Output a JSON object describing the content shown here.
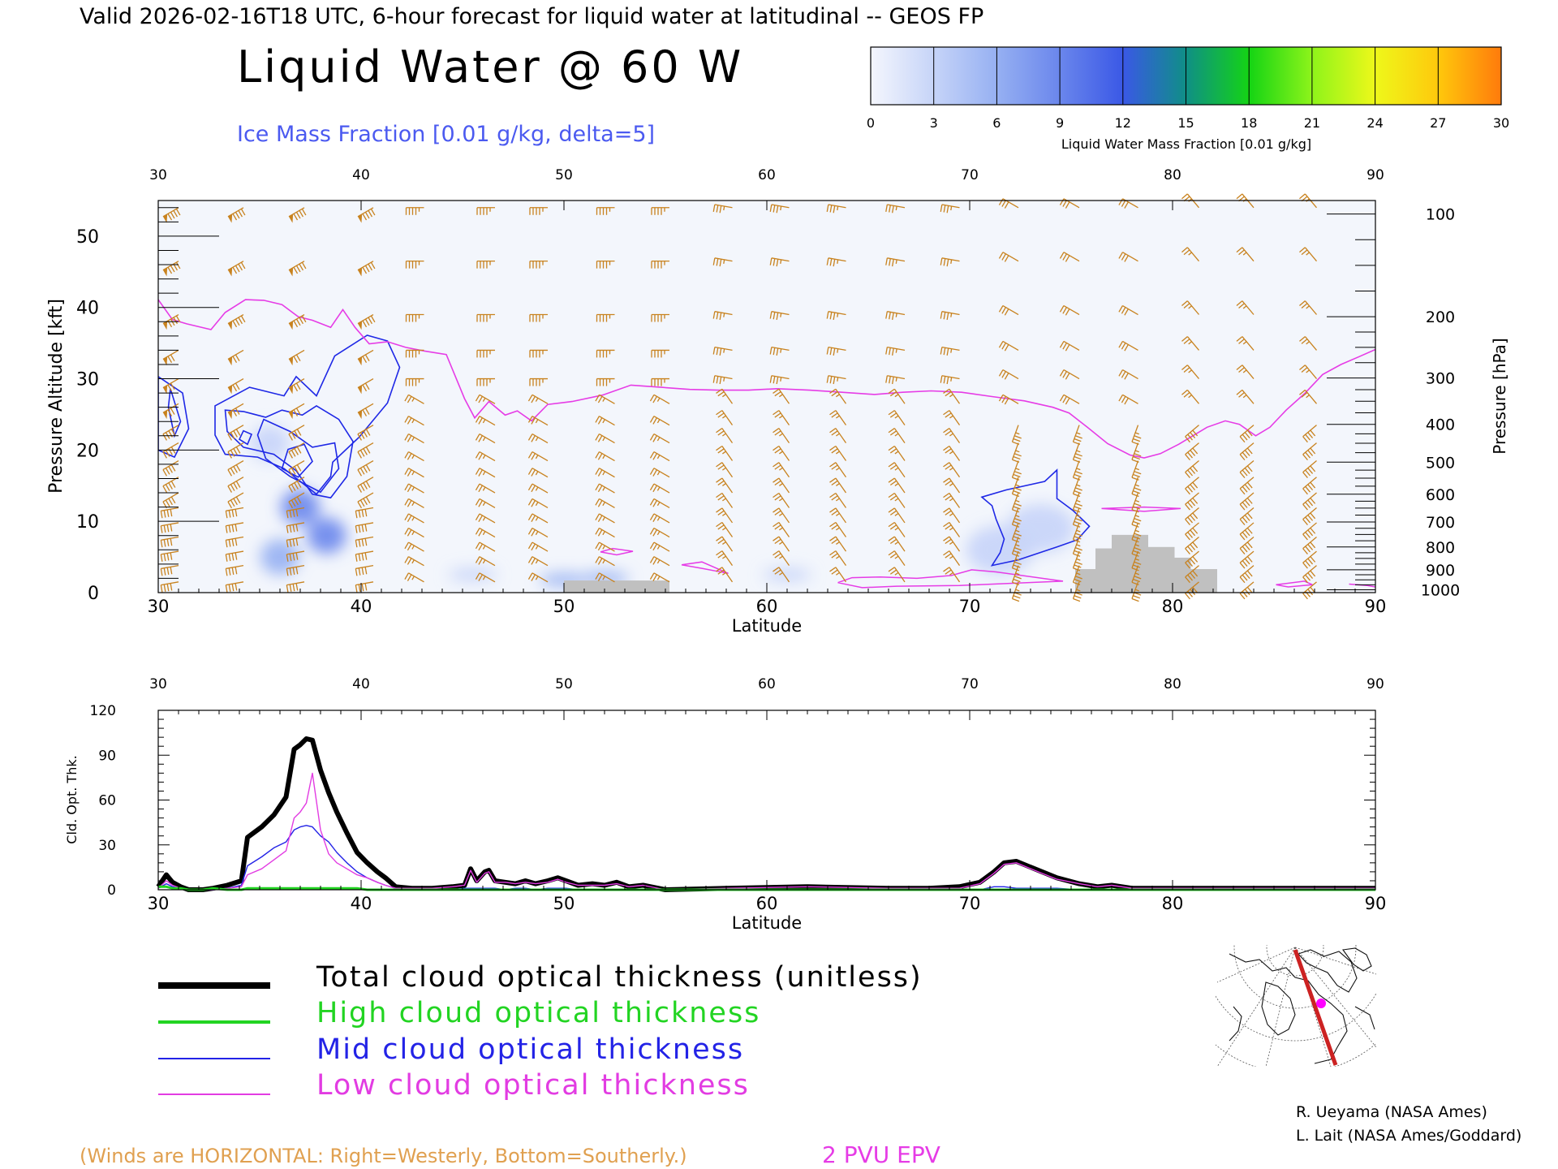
{
  "header": {
    "top_line": "Valid 2026-02-16T18 UTC, 6-hour forecast for liquid water at latitudinal -- GEOS FP",
    "title": "Liquid Water @ 60 W",
    "contour_label": "Ice Mass Fraction [0.01 g/kg, delta=5]"
  },
  "colorbar": {
    "ticks": [
      "0",
      "3",
      "6",
      "9",
      "12",
      "15",
      "18",
      "21",
      "24",
      "27",
      "30"
    ],
    "label": "Liquid Water Mass Fraction [0.01 g/kg]",
    "colors": [
      "#f4f6fd",
      "#c6d4f8",
      "#96b0f2",
      "#6a86ec",
      "#3a58e6",
      "#0f8f86",
      "#14d414",
      "#8ef41a",
      "#eef81a",
      "#ffc80c",
      "#ff7a0c",
      "#ff2a0c"
    ]
  },
  "chart_data": [
    {
      "type": "heatmap",
      "x_ticks": [
        30,
        40,
        50,
        60,
        70,
        80,
        90
      ],
      "xlabel": "Latitude",
      "xlim": [
        30,
        90
      ],
      "ylabel_left": "Pressure Altitude [kft]",
      "ylim_left": [
        0,
        55
      ],
      "y_ticks_left": [
        0,
        10,
        20,
        30,
        40,
        50
      ],
      "ylabel_right": "Pressure [hPa]",
      "y_ticks_right": [
        "100",
        "200",
        "300",
        "400",
        "500",
        "600",
        "700",
        "800",
        "900",
        "1000"
      ],
      "y_ticks_right_kft": [
        53.1,
        38.7,
        30.1,
        23.6,
        18.3,
        13.8,
        9.9,
        6.4,
        3.2,
        0.4
      ],
      "liquid_water_blobs": [
        {
          "lat": 37.0,
          "kft": 12.0,
          "value": 10
        },
        {
          "lat": 35.5,
          "kft": 21.0,
          "value": 4
        },
        {
          "lat": 38.3,
          "kft": 8.0,
          "value": 9
        },
        {
          "lat": 36.0,
          "kft": 5.0,
          "value": 7
        },
        {
          "lat": 50.0,
          "kft": 1.8,
          "value": 7
        },
        {
          "lat": 52.0,
          "kft": 2.0,
          "value": 5
        },
        {
          "lat": 45.5,
          "kft": 2.5,
          "value": 4
        },
        {
          "lat": 61.0,
          "kft": 2.5,
          "value": 3
        },
        {
          "lat": 73.5,
          "kft": 9.0,
          "value": 3
        },
        {
          "lat": 71.5,
          "kft": 6.0,
          "value": 2
        }
      ],
      "ice_contours": [
        {
          "name": "ice-35-west",
          "points": [
            [
              30,
              30.3
            ],
            [
              31.2,
              28
            ],
            [
              31.5,
              23
            ],
            [
              30.8,
              19
            ],
            [
              30,
              20
            ]
          ]
        },
        {
          "name": "ice-35-inner",
          "points": [
            [
              30.6,
              28.6
            ],
            [
              31.1,
              24
            ],
            [
              30.8,
              22
            ],
            [
              30.5,
              26
            ]
          ]
        },
        {
          "name": "ice-outer",
          "points": [
            [
              32.8,
              26.2
            ],
            [
              34.5,
              28.8
            ],
            [
              36.2,
              27.6
            ],
            [
              36.8,
              30.3
            ],
            [
              37.8,
              27.6
            ],
            [
              38.7,
              33.2
            ],
            [
              40.3,
              36.1
            ],
            [
              41.3,
              35.3
            ],
            [
              41.9,
              31.6
            ],
            [
              41.3,
              26.6
            ],
            [
              39.9,
              21.8
            ],
            [
              38.6,
              18.3
            ],
            [
              38.5,
              16.3
            ],
            [
              37.8,
              13.8
            ],
            [
              36.2,
              17.4
            ],
            [
              34.9,
              19
            ],
            [
              33.3,
              19.4
            ],
            [
              32.8,
              22.1
            ]
          ]
        },
        {
          "name": "ice-mid",
          "points": [
            [
              33.3,
              25.6
            ],
            [
              34.2,
              25.4
            ],
            [
              35.3,
              24.6
            ],
            [
              36.1,
              25.6
            ],
            [
              37.1,
              24.9
            ],
            [
              37.8,
              26.2
            ],
            [
              38.9,
              24.3
            ],
            [
              39.6,
              21.2
            ],
            [
              39.3,
              16.3
            ],
            [
              38.5,
              13.3
            ],
            [
              37.6,
              13.8
            ],
            [
              36.8,
              17.1
            ],
            [
              35.7,
              19.4
            ],
            [
              34.2,
              20.4
            ],
            [
              33.4,
              22.6
            ]
          ]
        },
        {
          "name": "ice-inner",
          "points": [
            [
              35.2,
              24.3
            ],
            [
              36.5,
              22.6
            ],
            [
              37.6,
              20.4
            ],
            [
              38.7,
              21
            ],
            [
              38.9,
              17.4
            ],
            [
              38.0,
              14.1
            ],
            [
              36.5,
              16.3
            ],
            [
              35.3,
              18.8
            ],
            [
              34.9,
              22.1
            ]
          ]
        },
        {
          "name": "ice-core-a",
          "points": [
            [
              36.1,
              17.4
            ],
            [
              36.9,
              16.2
            ],
            [
              37.6,
              18.4
            ],
            [
              37.2,
              20.8
            ],
            [
              36.4,
              20.1
            ]
          ]
        },
        {
          "name": "ice-core-b",
          "points": [
            [
              34.0,
              21.5
            ],
            [
              34.4,
              20.8
            ],
            [
              34.6,
              22.2
            ],
            [
              34.2,
              22.7
            ]
          ]
        },
        {
          "name": "ice-arctic",
          "points": [
            [
              70.6,
              13.4
            ],
            [
              71.8,
              14.4
            ],
            [
              73.7,
              15.6
            ],
            [
              74.3,
              17.2
            ],
            [
              74.3,
              13.2
            ],
            [
              75.1,
              11.5
            ],
            [
              75.9,
              9.3
            ],
            [
              75.3,
              7.4
            ],
            [
              74.3,
              6.4
            ],
            [
              72.4,
              4.6
            ],
            [
              71.1,
              3.8
            ],
            [
              71.5,
              5.6
            ],
            [
              71.7,
              7.5
            ],
            [
              71.3,
              10.3
            ],
            [
              71.1,
              12.2
            ]
          ]
        }
      ],
      "epv_2pvu_line": {
        "lat": [
          30,
          30.7,
          31.4,
          32.6,
          33.3,
          34.3,
          35.2,
          36.1,
          36.9,
          37.6,
          38.5,
          39.1,
          39.7,
          40.4,
          41.3,
          42.2,
          43.1,
          44.2,
          45.1,
          45.6,
          46.3,
          47.1,
          47.7,
          48.4,
          49.2,
          50.4,
          51.9,
          53.3,
          54.8,
          56.2,
          57.6,
          59.1,
          60.5,
          62.1,
          63.7,
          65.3,
          66.7,
          68.1,
          69.6,
          71.1,
          72.7,
          74.1,
          74.9,
          75.8,
          76.8,
          77.9,
          78.6,
          79.4,
          80.3,
          81.7,
          82.6,
          83.3,
          84.1,
          84.8,
          85.6,
          86.5,
          87.4,
          88.3,
          89.2,
          90
        ],
        "kft": [
          41.1,
          38.3,
          37.7,
          36.9,
          39.3,
          41.1,
          41,
          40.4,
          38.7,
          38.2,
          37.2,
          39.7,
          37.2,
          34.9,
          35.2,
          34.4,
          33.9,
          33.4,
          27.2,
          24.5,
          26.8,
          24.9,
          25.5,
          24.1,
          26.4,
          26.8,
          27.7,
          29.1,
          28.8,
          28.5,
          28.4,
          28.4,
          28.6,
          28.4,
          28.1,
          27.8,
          28.1,
          28.3,
          28.1,
          27.5,
          26.9,
          26,
          25.2,
          23.2,
          20.9,
          19.3,
          18.9,
          19.5,
          20.8,
          23.2,
          24.1,
          23.6,
          22,
          23.2,
          25.6,
          27.9,
          30.6,
          32,
          33.1,
          34.1
        ]
      },
      "epv_low_loops": [
        {
          "lat": [
            51.8,
            52.6,
            53.4,
            52.4,
            51.8
          ],
          "kft": [
            5.7,
            5.3,
            5.8,
            6.2,
            5.7
          ]
        },
        {
          "lat": [
            55.8,
            56.8,
            58.1,
            56.8,
            55.8
          ],
          "kft": [
            3.9,
            3.4,
            2.7,
            4.3,
            3.9
          ]
        },
        {
          "lat": [
            63.5,
            64.2,
            65.6,
            67.4,
            69.1,
            70.1,
            71.3,
            74.6,
            69.5,
            66.4,
            64.7,
            63.5
          ],
          "kft": [
            1.4,
            2.1,
            2.2,
            2.0,
            2.4,
            3.2,
            2.9,
            1.6,
            1.0,
            0.9,
            0.7,
            1.4
          ]
        },
        {
          "lat": [
            76.5,
            78.6,
            80.4,
            78.6,
            76.5
          ],
          "kft": [
            11.8,
            12.0,
            11.8,
            11.4,
            11.8
          ]
        },
        {
          "lat": [
            85.1,
            86.5,
            86.9,
            85.7,
            85.1
          ],
          "kft": [
            1.1,
            1.6,
            1.1,
            0.8,
            1.1
          ]
        },
        {
          "lat": [
            88.7,
            89.6,
            90
          ],
          "kft": [
            1.2,
            1.0,
            0.8
          ]
        }
      ],
      "terrain": [
        {
          "lat_from": 50.0,
          "lat_to": 55.2,
          "kft": 1.7
        },
        {
          "lat_from": 75.2,
          "lat_to": 76.2,
          "kft": 3.3
        },
        {
          "lat_from": 76.2,
          "lat_to": 77.0,
          "kft": 6.2
        },
        {
          "lat_from": 77.0,
          "lat_to": 78.8,
          "kft": 8.1
        },
        {
          "lat_from": 78.8,
          "lat_to": 80.1,
          "kft": 6.4
        },
        {
          "lat_from": 80.1,
          "lat_to": 80.9,
          "kft": 4.9
        },
        {
          "lat_from": 80.9,
          "lat_to": 82.2,
          "kft": 3.3
        }
      ],
      "wind_barb_lats": [
        31,
        34.2,
        37.2,
        40.6,
        43.1,
        46.6,
        49.2,
        52.5,
        55.2,
        58.3,
        61.1,
        63.9,
        66.8,
        69.5,
        72.4,
        75.4,
        78.3,
        81.3,
        84,
        87.1
      ],
      "wind_barb_levels_kft": [
        54,
        46.5,
        39,
        34,
        30,
        26.5,
        23.5,
        21,
        18.5,
        16.2,
        14,
        11.9,
        9.8,
        7.8,
        5.8,
        3.8,
        1.5
      ]
    },
    {
      "type": "line",
      "xlabel": "Latitude",
      "ylabel": "Cld. Opt. Thk.",
      "xlim": [
        30,
        90
      ],
      "ylim": [
        0,
        120
      ],
      "x_ticks": [
        30,
        40,
        50,
        60,
        70,
        80,
        90
      ],
      "y_ticks": [
        0,
        30,
        60,
        90,
        120
      ],
      "x": [
        30,
        30.4,
        30.7,
        31.1,
        31.5,
        32.2,
        32.7,
        33.4,
        34.1,
        34.4,
        35.1,
        35.7,
        36.3,
        36.7,
        37.0,
        37.3,
        37.6,
        38.0,
        38.4,
        38.8,
        39.3,
        39.8,
        40.3,
        40.8,
        41.2,
        41.7,
        42.5,
        43.5,
        44.5,
        45.1,
        45.4,
        45.7,
        46.1,
        46.3,
        46.6,
        47.1,
        47.6,
        48.1,
        48.6,
        49.2,
        49.7,
        50.1,
        50.7,
        51.4,
        52.0,
        52.6,
        53.2,
        53.9,
        55,
        58,
        62,
        66,
        68,
        69.5,
        70.5,
        71.2,
        71.7,
        72.3,
        73.2,
        74.3,
        75.4,
        76.3,
        77.0,
        78,
        82,
        86,
        90
      ],
      "series": [
        {
          "name": "Total cloud optical thickness (unitless)",
          "color": "#000000",
          "values": [
            2,
            10,
            5,
            2,
            0,
            0,
            1,
            3,
            6,
            35,
            42,
            50,
            62,
            94,
            97,
            101,
            100,
            80,
            65,
            52,
            38,
            25,
            18,
            12,
            8,
            2,
            1,
            1,
            2,
            3,
            14,
            6,
            12,
            13,
            6,
            5,
            4,
            6,
            4,
            6,
            8,
            6,
            3,
            4,
            3,
            5,
            2,
            3,
            0,
            1,
            2,
            1,
            1,
            2,
            5,
            12,
            18,
            19,
            14,
            8,
            4,
            2,
            3,
            1,
            1,
            1,
            1
          ]
        },
        {
          "name": "High cloud optical thickness",
          "color": "#22d422",
          "values": [
            2,
            2,
            1,
            1,
            0,
            0,
            1,
            0,
            0,
            1,
            1,
            1,
            1,
            1,
            1,
            1,
            1,
            1,
            1,
            1,
            1,
            1,
            0,
            0,
            0,
            0,
            0,
            0,
            0,
            0,
            0,
            0,
            0,
            0,
            0,
            0,
            0,
            0,
            0,
            0,
            0,
            0,
            0,
            0,
            0,
            0,
            0,
            0,
            0,
            0,
            0,
            0,
            0,
            0,
            0,
            0,
            0,
            0,
            0,
            0,
            0,
            0,
            0,
            0,
            0,
            0,
            0
          ]
        },
        {
          "name": "Mid cloud optical thickness",
          "color": "#2323e6",
          "values": [
            1,
            4,
            2,
            1,
            0,
            0,
            0,
            1,
            3,
            16,
            22,
            28,
            32,
            40,
            42,
            43,
            42,
            36,
            32,
            25,
            18,
            12,
            8,
            5,
            3,
            1,
            0,
            0,
            0,
            1,
            1,
            1,
            1,
            1,
            1,
            0,
            1,
            1,
            0,
            1,
            1,
            1,
            0,
            0,
            0,
            0,
            0,
            0,
            0,
            0,
            0,
            0,
            0,
            0,
            0,
            2,
            2,
            1,
            1,
            1,
            0,
            0,
            0,
            0,
            0,
            0,
            0
          ]
        },
        {
          "name": "Low cloud optical thickness",
          "color": "#e23ce2",
          "values": [
            1,
            6,
            3,
            1,
            0,
            0,
            0,
            1,
            2,
            10,
            14,
            20,
            26,
            48,
            52,
            58,
            78,
            40,
            24,
            18,
            14,
            10,
            8,
            5,
            3,
            1,
            1,
            1,
            2,
            3,
            13,
            5,
            11,
            12,
            5,
            5,
            4,
            5,
            4,
            5,
            7,
            5,
            3,
            3,
            3,
            4,
            2,
            3,
            0,
            1,
            2,
            1,
            1,
            1,
            4,
            11,
            17,
            18,
            13,
            7,
            4,
            2,
            3,
            1,
            1,
            1,
            1
          ]
        }
      ]
    }
  ],
  "legend": {
    "total": "Total cloud optical thickness (unitless)",
    "high": "High cloud optical thickness",
    "mid": "Mid cloud optical thickness",
    "low": "Low cloud optical thickness"
  },
  "footer": {
    "winds_note": "(Winds are HORIZONTAL: Right=Westerly, Bottom=Southerly.)",
    "epv_label": "2 PVU EPV",
    "credit1": "R. Ueyama (NASA Ames)",
    "credit2": "L. Lait (NASA Ames/Goddard)"
  },
  "colors": {
    "wind": "#c8821e",
    "epv": "#e63ce6",
    "ice_contour": "#1e28e6",
    "terrain": "#c0c0c0",
    "contour_label": "#4b5af0",
    "winds_note": "#e0a050"
  }
}
